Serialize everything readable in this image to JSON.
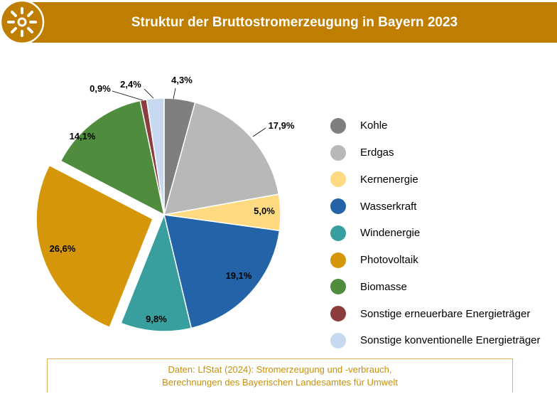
{
  "header": {
    "title": "Struktur der Bruttostromerzeugung in Bayern 2023"
  },
  "chart_data": {
    "type": "pie",
    "title": "Struktur der Bruttostromerzeugung in Bayern 2023",
    "unit": "%",
    "legend_position": "right",
    "slices": [
      {
        "name": "Kohle",
        "value": 4.3,
        "label": "4,3%",
        "color": "#7f7f7f"
      },
      {
        "name": "Erdgas",
        "value": 17.9,
        "label": "17,9%",
        "color": "#b8b8b8"
      },
      {
        "name": "Kernenergie",
        "value": 5.0,
        "label": "5,0%",
        "color": "#ffda80"
      },
      {
        "name": "Wasserkraft",
        "value": 19.1,
        "label": "19,1%",
        "color": "#2363a8"
      },
      {
        "name": "Windenergie",
        "value": 9.8,
        "label": "9,8%",
        "color": "#389f9e"
      },
      {
        "name": "Photovoltaik",
        "value": 26.6,
        "label": "26,6%",
        "color": "#d6960a",
        "exploded": true
      },
      {
        "name": "Biomasse",
        "value": 14.1,
        "label": "14,1%",
        "color": "#4f8c3d"
      },
      {
        "name": "Sonstige erneuerbare Energieträger",
        "value": 0.9,
        "label": "0,9%",
        "color": "#8c3d3d"
      },
      {
        "name": "Sonstige konventionelle Energieträger",
        "value": 2.4,
        "label": "2,4%",
        "color": "#c6d9f1"
      }
    ]
  },
  "source": {
    "line1": "Daten: LfStat (2024): Stromerzeugung und -verbrauch,",
    "line2": "Berechnungen des Bayerischen Landesamtes für Umwelt"
  }
}
